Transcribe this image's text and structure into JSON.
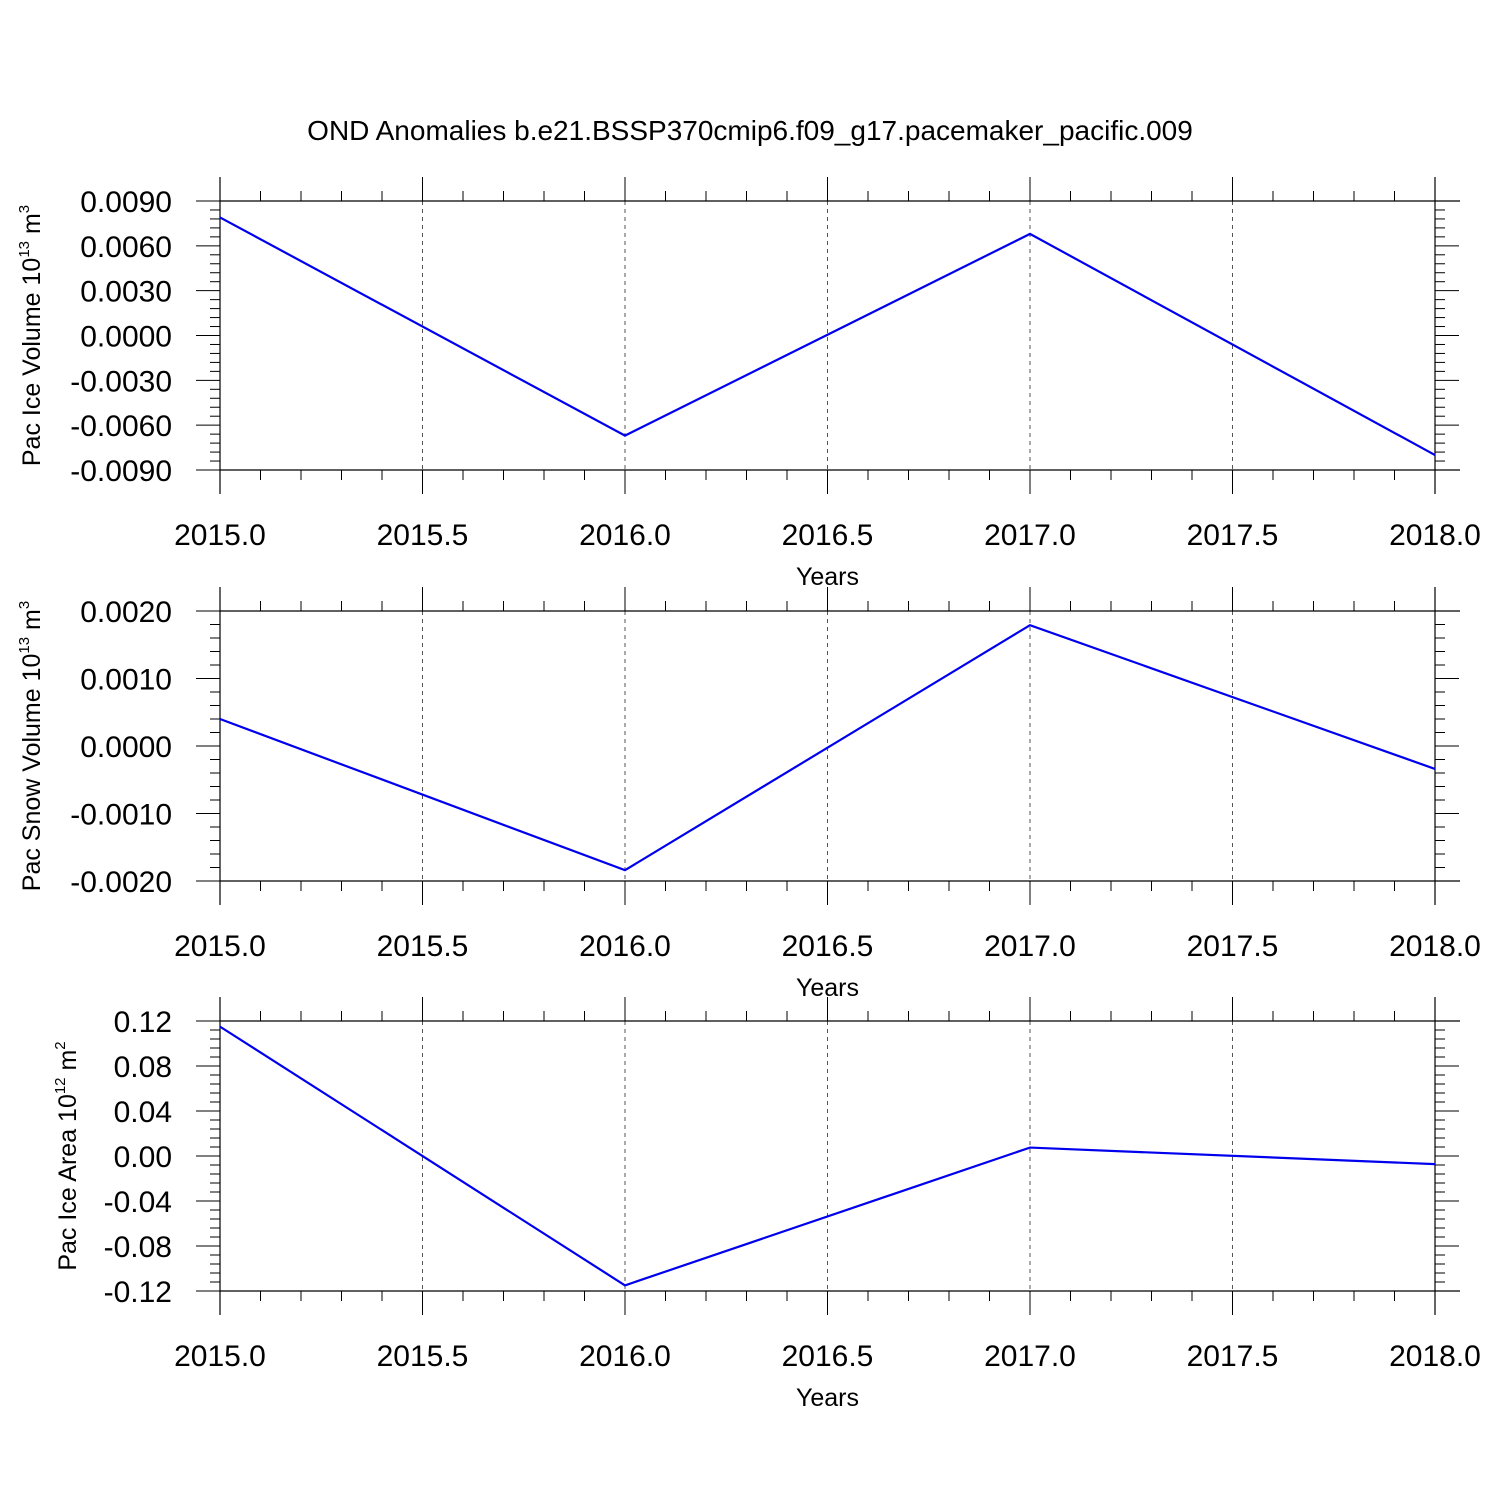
{
  "figure": {
    "title": "OND Anomalies b.e21.BSSP370cmip6.f09_g17.pacemaker_pacific.009",
    "line_color": "#0000ee",
    "grid_color": "#555555",
    "axis_color": "#000000"
  },
  "chart_data": [
    {
      "type": "line",
      "xlabel": "Years",
      "ylabel": {
        "main": "Pac Ice Volume 10",
        "exp": "13",
        "unit": " m",
        "unit_exp": "3"
      },
      "x": [
        2015,
        2016,
        2017,
        2018
      ],
      "series": [
        {
          "values": [
            0.0079,
            -0.0067,
            0.0068,
            -0.008
          ]
        }
      ],
      "xlim": [
        2015,
        2018
      ],
      "ylim": [
        -0.009,
        0.009
      ],
      "x_ticks": [
        2015.0,
        2015.5,
        2016.0,
        2016.5,
        2017.0,
        2017.5,
        2018.0
      ],
      "x_tick_labels": [
        "2015.0",
        "2015.5",
        "2016.0",
        "2016.5",
        "2017.0",
        "2017.5",
        "2018.0"
      ],
      "y_ticks": [
        0.009,
        0.006,
        0.003,
        0.0,
        -0.003,
        -0.006,
        -0.009
      ],
      "y_tick_labels": [
        "0.0090",
        "0.0060",
        "0.0030",
        "0.0000",
        "-0.0030",
        "-0.0060",
        "-0.0090"
      ],
      "y_minor_per_major": 5,
      "grid": "vertical-dashed"
    },
    {
      "type": "line",
      "xlabel": "Years",
      "ylabel": {
        "main": "Pac Snow Volume 10",
        "exp": "13",
        "unit": " m",
        "unit_exp": "3"
      },
      "x": [
        2015,
        2016,
        2017,
        2018
      ],
      "series": [
        {
          "values": [
            0.0004,
            -0.00184,
            0.00179,
            -0.00034
          ]
        }
      ],
      "xlim": [
        2015,
        2018
      ],
      "ylim": [
        -0.002,
        0.002
      ],
      "x_ticks": [
        2015.0,
        2015.5,
        2016.0,
        2016.5,
        2017.0,
        2017.5,
        2018.0
      ],
      "x_tick_labels": [
        "2015.0",
        "2015.5",
        "2016.0",
        "2016.5",
        "2017.0",
        "2017.5",
        "2018.0"
      ],
      "y_ticks": [
        0.002,
        0.001,
        0.0,
        -0.001,
        -0.002
      ],
      "y_tick_labels": [
        "0.0020",
        "0.0010",
        "0.0000",
        "-0.0010",
        "-0.0020"
      ],
      "y_minor_per_major": 5,
      "grid": "vertical-dashed"
    },
    {
      "type": "line",
      "xlabel": "Years",
      "ylabel": {
        "main": "Pac Ice Area 10",
        "exp": "12",
        "unit": " m",
        "unit_exp": "2"
      },
      "x": [
        2015,
        2016,
        2017,
        2018
      ],
      "series": [
        {
          "values": [
            0.115,
            -0.115,
            0.0075,
            -0.0072
          ]
        }
      ],
      "xlim": [
        2015,
        2018
      ],
      "ylim": [
        -0.12,
        0.12
      ],
      "x_ticks": [
        2015.0,
        2015.5,
        2016.0,
        2016.5,
        2017.0,
        2017.5,
        2018.0
      ],
      "x_tick_labels": [
        "2015.0",
        "2015.5",
        "2016.0",
        "2016.5",
        "2017.0",
        "2017.5",
        "2018.0"
      ],
      "y_ticks": [
        0.12,
        0.08,
        0.04,
        0.0,
        -0.04,
        -0.08,
        -0.12
      ],
      "y_tick_labels": [
        "0.12",
        "0.08",
        "0.04",
        "0.00",
        "-0.04",
        "-0.08",
        "-0.12"
      ],
      "y_minor_per_major": 5,
      "grid": "vertical-dashed"
    }
  ]
}
